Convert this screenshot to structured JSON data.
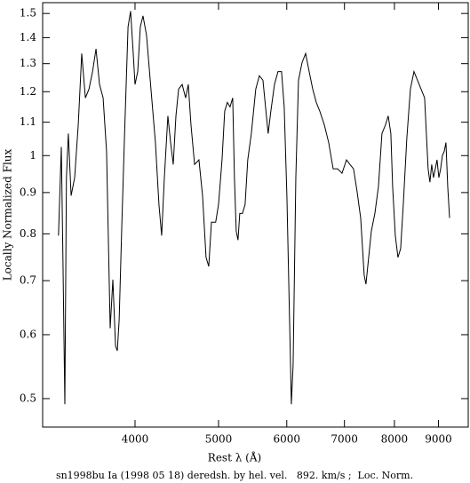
{
  "chart_data": {
    "type": "line",
    "xlabel": "Rest λ (Å)",
    "ylabel": "Locally Normalized Flux",
    "footer": "sn1998bu Ia (1998 05 18) deredsh. by hel. vel.   892. km/s ;  Loc. Norm.",
    "xscale": "log",
    "yscale": "log",
    "xlim": [
      3125,
      9744
    ],
    "ylim": [
      0.461,
      1.547
    ],
    "xticks": [
      4000,
      5000,
      6000,
      7000,
      8000,
      9000
    ],
    "yticks": [
      0.5,
      0.6,
      0.7,
      0.8,
      0.9,
      1,
      1.1,
      1.2,
      1.3,
      1.4,
      1.5
    ],
    "color": "#000000",
    "x": [
      3260,
      3285,
      3300,
      3316,
      3330,
      3347,
      3372,
      3404,
      3437,
      3469,
      3503,
      3537,
      3571,
      3604,
      3638,
      3673,
      3707,
      3743,
      3770,
      3797,
      3815,
      3834,
      3862,
      3890,
      3926,
      3953,
      3981,
      4000,
      4029,
      4057,
      4086,
      4125,
      4174,
      4224,
      4264,
      4295,
      4326,
      4367,
      4399,
      4430,
      4462,
      4494,
      4537,
      4579,
      4612,
      4645,
      4690,
      4745,
      4791,
      4836,
      4871,
      4906,
      4962,
      5000,
      5047,
      5083,
      5119,
      5156,
      5193,
      5217,
      5242,
      5267,
      5292,
      5330,
      5368,
      5406,
      5458,
      5497,
      5523,
      5576,
      5630,
      5669,
      5709,
      5750,
      5806,
      5861,
      5917,
      5959,
      6002,
      6045,
      6074,
      6103,
      6147,
      6191,
      6250,
      6310,
      6370,
      6431,
      6492,
      6554,
      6633,
      6711,
      6792,
      6873,
      6955,
      7038,
      7105,
      7172,
      7240,
      7310,
      7379,
      7414,
      7450,
      7521,
      7593,
      7665,
      7738,
      7812,
      7868,
      7924,
      7962,
      8019,
      8076,
      8134,
      8192,
      8270,
      8349,
      8429,
      8508,
      8590,
      8672,
      8713,
      8754,
      8796,
      8838,
      8880,
      8923,
      8965,
      9008,
      9051,
      9094,
      9138,
      9181,
      9225,
      9270
    ],
    "values": [
      0.796,
      1.025,
      0.729,
      0.492,
      0.939,
      1.065,
      0.892,
      0.939,
      1.092,
      1.338,
      1.179,
      1.209,
      1.271,
      1.356,
      1.225,
      1.179,
      1.012,
      0.611,
      0.702,
      0.581,
      0.573,
      0.626,
      0.827,
      1.065,
      1.444,
      1.51,
      1.338,
      1.225,
      1.271,
      1.444,
      1.49,
      1.409,
      1.209,
      1.038,
      0.87,
      0.796,
      0.939,
      1.12,
      1.038,
      0.975,
      1.12,
      1.209,
      1.225,
      1.179,
      1.225,
      1.092,
      0.975,
      0.988,
      0.892,
      0.748,
      0.729,
      0.827,
      0.827,
      0.87,
      0.988,
      1.135,
      1.164,
      1.149,
      1.179,
      0.939,
      0.806,
      0.786,
      0.848,
      0.848,
      0.87,
      0.988,
      1.065,
      1.149,
      1.209,
      1.256,
      1.24,
      1.149,
      1.065,
      1.135,
      1.225,
      1.271,
      1.271,
      1.149,
      0.892,
      0.626,
      0.492,
      0.551,
      0.939,
      1.24,
      1.304,
      1.338,
      1.271,
      1.209,
      1.164,
      1.135,
      1.092,
      1.038,
      0.963,
      0.963,
      0.951,
      0.988,
      0.975,
      0.963,
      0.903,
      0.837,
      0.711,
      0.693,
      0.729,
      0.806,
      0.848,
      0.915,
      1.065,
      1.092,
      1.12,
      1.065,
      0.915,
      0.796,
      0.748,
      0.767,
      0.87,
      1.052,
      1.209,
      1.271,
      1.24,
      1.209,
      1.179,
      1.065,
      0.963,
      0.927,
      0.975,
      0.939,
      0.963,
      0.988,
      0.939,
      0.963,
      1.0,
      1.012,
      1.038,
      0.915,
      0.837
    ]
  }
}
